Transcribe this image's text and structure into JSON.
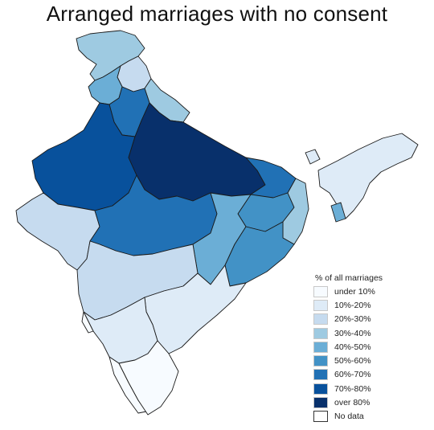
{
  "title": "Arranged marriages with no consent",
  "legend": {
    "title": "% of all marriages",
    "items": [
      {
        "label": "under 10%",
        "color": "#f7fbff"
      },
      {
        "label": "10%-20%",
        "color": "#deebf7"
      },
      {
        "label": "20%-30%",
        "color": "#c6dbef"
      },
      {
        "label": "30%-40%",
        "color": "#9ecae1"
      },
      {
        "label": "40%-50%",
        "color": "#6baed6"
      },
      {
        "label": "50%-60%",
        "color": "#4292c6"
      },
      {
        "label": "60%-70%",
        "color": "#2171b5"
      },
      {
        "label": "70%-80%",
        "color": "#08519c"
      },
      {
        "label": "over 80%",
        "color": "#08306b"
      },
      {
        "label": "No data",
        "color": "#ffffff"
      }
    ]
  },
  "map": {
    "regions": [
      {
        "name": "Jammu and Kashmir",
        "class": "30%-40%"
      },
      {
        "name": "Himachal Pradesh",
        "class": "20%-30%"
      },
      {
        "name": "Punjab",
        "class": "40%-50%"
      },
      {
        "name": "Uttarakhand",
        "class": "30%-40%"
      },
      {
        "name": "Haryana",
        "class": "60%-70%"
      },
      {
        "name": "Rajasthan",
        "class": "70%-80%"
      },
      {
        "name": "Uttar Pradesh",
        "class": "over 80%"
      },
      {
        "name": "Bihar",
        "class": "60%-70%"
      },
      {
        "name": "Gujarat",
        "class": "20%-30%"
      },
      {
        "name": "Madhya Pradesh",
        "class": "60%-70%"
      },
      {
        "name": "Jharkhand",
        "class": "50%-60%"
      },
      {
        "name": "West Bengal",
        "class": "30%-40%"
      },
      {
        "name": "Chhattisgarh",
        "class": "40%-50%"
      },
      {
        "name": "Odisha",
        "class": "50%-60%"
      },
      {
        "name": "Maharashtra",
        "class": "20%-30%"
      },
      {
        "name": "Telangana/Andhra Pradesh",
        "class": "10%-20%"
      },
      {
        "name": "Karnataka",
        "class": "10%-20%"
      },
      {
        "name": "Goa",
        "class": "under 10%"
      },
      {
        "name": "Kerala",
        "class": "under 10%"
      },
      {
        "name": "Tamil Nadu",
        "class": "under 10%"
      },
      {
        "name": "Sikkim",
        "class": "10%-20%"
      },
      {
        "name": "Northeast",
        "class": "10%-20%"
      },
      {
        "name": "Tripura",
        "class": "40%-50%"
      }
    ]
  }
}
